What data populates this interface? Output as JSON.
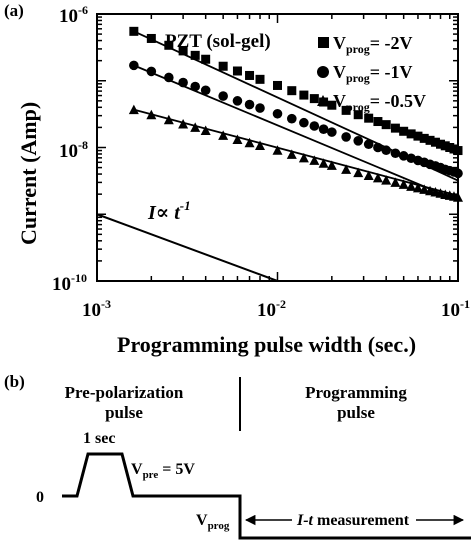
{
  "panel_a_label": "(a)",
  "panel_b_label": "(b)",
  "chart_data": {
    "type": "scatter",
    "title": "PZT (sol-gel)",
    "xlabel": "Programming pulse width (sec.)",
    "ylabel": "Current (Amp)",
    "x_scale": "log",
    "y_scale": "log",
    "xlim": [
      0.001,
      0.1
    ],
    "ylim": [
      1e-10,
      1e-06
    ],
    "x_ticks": [
      {
        "base": "10",
        "exp": "-3",
        "value": 0.001
      },
      {
        "base": "10",
        "exp": "-2",
        "value": 0.01
      },
      {
        "base": "10",
        "exp": "-1",
        "value": 0.1
      }
    ],
    "y_ticks": [
      {
        "base": "10",
        "exp": "-6",
        "value": 1e-06
      },
      {
        "base": "10",
        "exp": "-8",
        "value": 1e-08
      },
      {
        "base": "10",
        "exp": "-10",
        "value": 1e-10
      }
    ],
    "legend_position": "top-right",
    "reference_line": {
      "label_main": "I",
      "label_mid": "∝ t",
      "label_exp": "-1",
      "x": [
        0.001,
        0.01
      ],
      "y": [
        1e-09,
        1e-10
      ]
    },
    "series": [
      {
        "name_main": "V",
        "name_sub": "prog",
        "name_value": "= -2V",
        "marker": "square",
        "fit": {
          "x": [
            0.0016,
            0.1
          ],
          "y": [
            5.5e-07,
            3.2e-09
          ]
        },
        "x": [
          0.0016,
          0.002,
          0.0025,
          0.003,
          0.0035,
          0.004,
          0.005,
          0.006,
          0.007,
          0.008,
          0.01,
          0.012,
          0.014,
          0.016,
          0.018,
          0.02,
          0.024,
          0.028,
          0.032,
          0.036,
          0.04,
          0.045,
          0.05,
          0.055,
          0.06,
          0.065,
          0.07,
          0.075,
          0.08,
          0.085,
          0.09,
          0.095,
          0.1
        ],
        "y": [
          5.5e-07,
          4.3e-07,
          3.4e-07,
          2.8e-07,
          2.4e-07,
          2.1e-07,
          1.65e-07,
          1.4e-07,
          1.2e-07,
          1.05e-07,
          8.5e-08,
          7.1e-08,
          6.1e-08,
          5.4e-08,
          4.8e-08,
          4.3e-08,
          3.6e-08,
          3.1e-08,
          2.75e-08,
          2.45e-08,
          2.2e-08,
          1.95e-08,
          1.75e-08,
          1.6e-08,
          1.48e-08,
          1.37e-08,
          1.28e-08,
          1.2e-08,
          1.12e-08,
          1.06e-08,
          1e-08,
          9.5e-09,
          9e-09
        ]
      },
      {
        "name_main": "V",
        "name_sub": "prog",
        "name_value": "= -1V",
        "marker": "circle",
        "fit": {
          "x": [
            0.0016,
            0.1
          ],
          "y": [
            1.7e-07,
            1.6e-09
          ]
        },
        "x": [
          0.0016,
          0.002,
          0.0025,
          0.003,
          0.0035,
          0.004,
          0.005,
          0.006,
          0.007,
          0.008,
          0.01,
          0.012,
          0.014,
          0.016,
          0.018,
          0.02,
          0.024,
          0.028,
          0.032,
          0.036,
          0.04,
          0.045,
          0.05,
          0.055,
          0.06,
          0.065,
          0.07,
          0.075,
          0.08,
          0.085,
          0.09,
          0.095,
          0.1
        ],
        "y": [
          1.7e-07,
          1.38e-07,
          1.12e-07,
          9.4e-08,
          8.2e-08,
          7.2e-08,
          5.9e-08,
          5e-08,
          4.4e-08,
          3.9e-08,
          3.2e-08,
          2.7e-08,
          2.35e-08,
          2.1e-08,
          1.88e-08,
          1.7e-08,
          1.44e-08,
          1.26e-08,
          1.12e-08,
          1e-08,
          9.1e-09,
          8.2e-09,
          7.5e-09,
          6.9e-09,
          6.4e-09,
          6e-09,
          5.6e-09,
          5.3e-09,
          5e-09,
          4.7e-09,
          4.5e-09,
          4.3e-09,
          4.1e-09
        ]
      },
      {
        "name_main": "V",
        "name_sub": "prog",
        "name_value": "= -0.5V",
        "marker": "triangle",
        "fit": {
          "x": [
            0.0016,
            0.1
          ],
          "y": [
            3.7e-08,
            1.9e-09
          ]
        },
        "x": [
          0.0016,
          0.002,
          0.0025,
          0.003,
          0.0035,
          0.004,
          0.005,
          0.006,
          0.007,
          0.008,
          0.01,
          0.012,
          0.014,
          0.016,
          0.018,
          0.02,
          0.024,
          0.028,
          0.032,
          0.036,
          0.04,
          0.045,
          0.05,
          0.055,
          0.06,
          0.065,
          0.07,
          0.075,
          0.08,
          0.085,
          0.09,
          0.095,
          0.1
        ],
        "y": [
          3.7e-08,
          3.1e-08,
          2.6e-08,
          2.25e-08,
          2e-08,
          1.8e-08,
          1.52e-08,
          1.32e-08,
          1.18e-08,
          1.07e-08,
          9.1e-09,
          7.9e-09,
          7e-09,
          6.4e-09,
          5.8e-09,
          5.4e-09,
          4.7e-09,
          4.2e-09,
          3.8e-09,
          3.5e-09,
          3.25e-09,
          3e-09,
          2.8e-09,
          2.62e-09,
          2.48e-09,
          2.36e-09,
          2.25e-09,
          2.15e-09,
          2.06e-09,
          1.98e-09,
          1.92e-09,
          1.86e-09,
          1.8e-09
        ]
      }
    ]
  },
  "diagram": {
    "pre_polarization_line1": "Pre-polarization",
    "pre_polarization_line2": "pulse",
    "programming_line1": "Programming",
    "programming_line2": "pulse",
    "one_sec": "1 sec",
    "vpre_main": "V",
    "vpre_sub": "pre",
    "vpre_value": " = 5V",
    "zero": "0",
    "vprog_main": "V",
    "vprog_sub": "prog",
    "measurement_italic": "I-t",
    "measurement_rest": " measurement"
  }
}
